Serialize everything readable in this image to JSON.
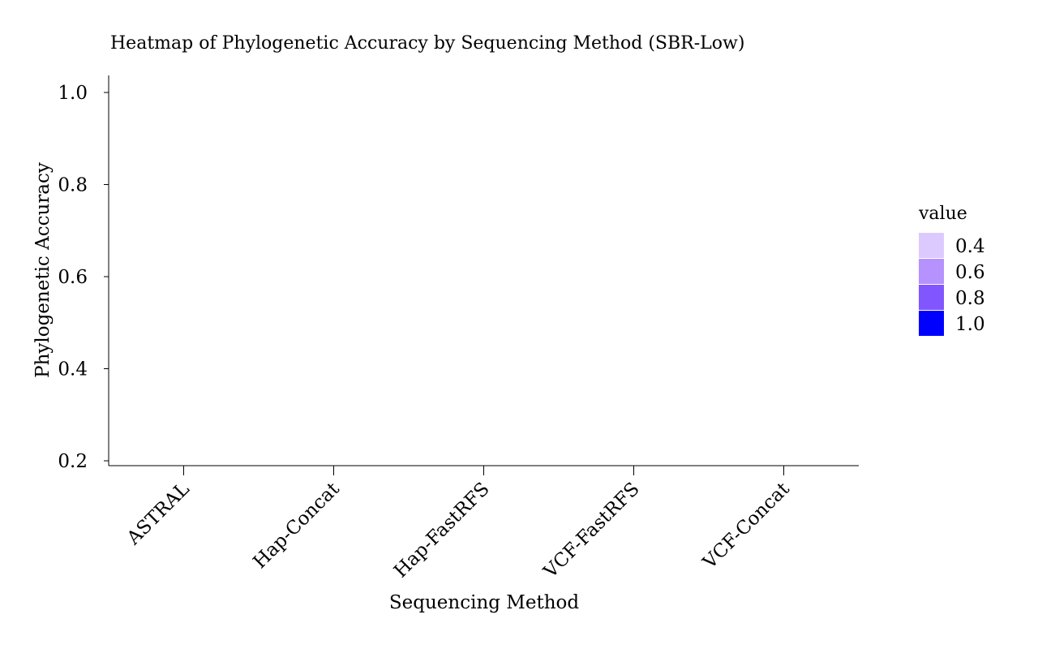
{
  "chart_data": {
    "type": "heatmap",
    "title": "Heatmap of Phylogenetic Accuracy by Sequencing Method (SBR-Low)",
    "xlabel": "Sequencing Method",
    "ylabel": "Phylogenetic Accuracy",
    "categories": [
      "ASTRAL",
      "Hap-Concat",
      "Hap-FastRFS",
      "VCF-FastRFS",
      "VCF-Concat"
    ],
    "y_ticks": [
      "0.2",
      "0.4",
      "0.6",
      "0.8",
      "1.0"
    ],
    "ylim": [
      0.2,
      1.0
    ],
    "grid": false,
    "cells": [],
    "legend": {
      "title": "value",
      "position": "right",
      "entries": [
        {
          "label": "0.4",
          "color": "#dccafe"
        },
        {
          "label": "0.6",
          "color": "#b692fe"
        },
        {
          "label": "0.8",
          "color": "#8256fe"
        },
        {
          "label": "1.0",
          "color": "#0000fe"
        }
      ]
    }
  }
}
